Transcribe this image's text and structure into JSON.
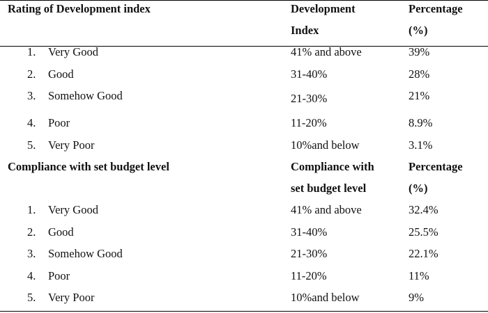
{
  "sections": [
    {
      "header": {
        "col1": "Rating of Development index",
        "col2_line1": "Development",
        "col2_line2": "Index",
        "col3_line1": "Percentage",
        "col3_line2": "(%)"
      },
      "rows": [
        {
          "num": "1.",
          "label": "Very Good",
          "range": "41% and above",
          "pct": "39%"
        },
        {
          "num": "2.",
          "label": "Good",
          "range": "31-40%",
          "pct": "28%"
        },
        {
          "num": "3.",
          "label": "Somehow Good",
          "range": "21-30%",
          "pct": "21%"
        },
        {
          "num": "4.",
          "label": "Poor",
          "range": "11-20%",
          "pct": "8.9%"
        },
        {
          "num": "5.",
          "label": "Very Poor",
          "range": "10%and below",
          "pct": "3.1%"
        }
      ]
    },
    {
      "header": {
        "col1": "Compliance with set budget level",
        "col2_line1": "Compliance with",
        "col2_line2": "set budget level",
        "col3_line1": "Percentage",
        "col3_line2": "(%)"
      },
      "rows": [
        {
          "num": "1.",
          "label": "Very Good",
          "range": "41% and above",
          "pct": "32.4%"
        },
        {
          "num": "2.",
          "label": "Good",
          "range": "31-40%",
          "pct": "25.5%"
        },
        {
          "num": "3.",
          "label": "Somehow Good",
          "range": "21-30%",
          "pct": "22.1%"
        },
        {
          "num": "4.",
          "label": "Poor",
          "range": "11-20%",
          "pct": "11%"
        },
        {
          "num": "5.",
          "label": "Very Poor",
          "range": "10%and below",
          "pct": "9%"
        }
      ]
    }
  ]
}
